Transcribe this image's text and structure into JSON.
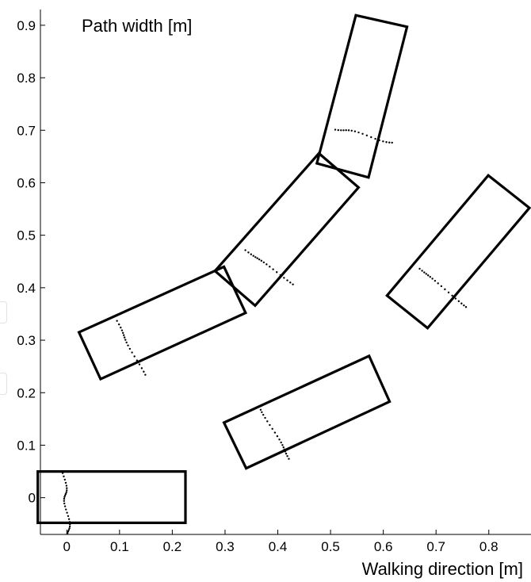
{
  "chart_data": {
    "type": "scatter",
    "title": "",
    "xlabel": "Walking direction [m]",
    "ylabel": "Path width [m]",
    "xlim": [
      -0.05,
      0.88
    ],
    "ylim": [
      -0.07,
      0.93
    ],
    "xticks": [
      0,
      0.1,
      0.2,
      0.3,
      0.4,
      0.5,
      0.6,
      0.7,
      0.8
    ],
    "xtick_labels": [
      "0",
      "0.1",
      "0.2",
      "0.3",
      "0.4",
      "0.5",
      "0.6",
      "0.7",
      "0.8"
    ],
    "yticks": [
      0,
      0.1,
      0.2,
      0.3,
      0.4,
      0.5,
      0.6,
      0.7,
      0.8,
      0.9
    ],
    "ytick_labels": [
      "0",
      "0.1",
      "0.2",
      "0.3",
      "0.4",
      "0.5",
      "0.6",
      "0.7",
      "0.8",
      "0.9"
    ],
    "grid": false,
    "rectangles": [
      {
        "corners": [
          [
            -0.055,
            0.05
          ],
          [
            0.225,
            0.05
          ],
          [
            0.225,
            -0.048
          ],
          [
            -0.055,
            -0.048
          ]
        ]
      },
      {
        "corners": [
          [
            0.023,
            0.315
          ],
          [
            0.298,
            0.44
          ],
          [
            0.339,
            0.352
          ],
          [
            0.064,
            0.226
          ]
        ]
      },
      {
        "corners": [
          [
            0.281,
            0.432
          ],
          [
            0.478,
            0.656
          ],
          [
            0.553,
            0.591
          ],
          [
            0.357,
            0.366
          ]
        ]
      },
      {
        "corners": [
          [
            0.474,
            0.637
          ],
          [
            0.548,
            0.919
          ],
          [
            0.645,
            0.897
          ],
          [
            0.572,
            0.61
          ]
        ]
      },
      {
        "corners": [
          [
            0.607,
            0.385
          ],
          [
            0.799,
            0.614
          ],
          [
            0.877,
            0.552
          ],
          [
            0.684,
            0.323
          ]
        ]
      },
      {
        "corners": [
          [
            0.298,
            0.143
          ],
          [
            0.573,
            0.27
          ],
          [
            0.612,
            0.183
          ],
          [
            0.34,
            0.056
          ]
        ]
      }
    ],
    "point_segments": [
      {
        "from": [
          -0.006,
          0.045
        ],
        "to": [
          0.004,
          -0.07
        ],
        "n": 26
      },
      {
        "from": [
          0.092,
          0.34
        ],
        "to": [
          0.145,
          0.238
        ],
        "n": 18
      },
      {
        "from": [
          0.335,
          0.475
        ],
        "to": [
          0.425,
          0.41
        ],
        "n": 18
      },
      {
        "from": [
          0.505,
          0.705
        ],
        "to": [
          0.615,
          0.678
        ],
        "n": 18
      },
      {
        "from": [
          0.665,
          0.44
        ],
        "to": [
          0.755,
          0.365
        ],
        "n": 18
      },
      {
        "from": [
          0.37,
          0.165
        ],
        "to": [
          0.425,
          0.07
        ],
        "n": 18
      }
    ]
  }
}
